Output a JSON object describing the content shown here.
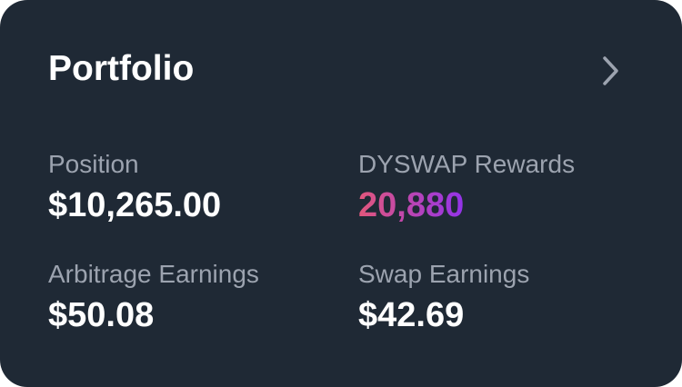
{
  "card": {
    "title": "Portfolio",
    "chevron_icon": "chevron-right-icon",
    "stats": [
      {
        "label": "Position",
        "value": "$10,265.00"
      },
      {
        "label": "DYSWAP Rewards",
        "value": "20,880"
      },
      {
        "label": "Arbitrage Earnings",
        "value": "$50.08"
      },
      {
        "label": "Swap Earnings",
        "value": "$42.69"
      }
    ],
    "colors": {
      "background": "#1f2935",
      "label": "#9ca3af",
      "rewards_gradient_start": "#e2577c",
      "rewards_gradient_end": "#9333ea"
    }
  }
}
